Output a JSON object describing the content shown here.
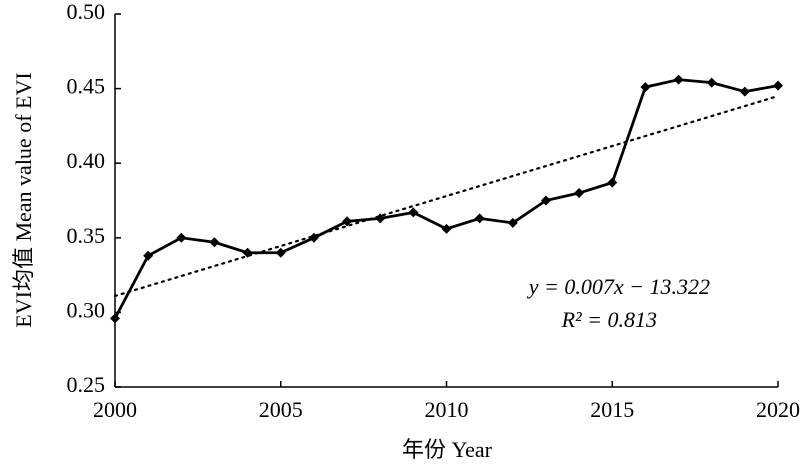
{
  "chart_data": {
    "type": "line",
    "x": [
      2000,
      2001,
      2002,
      2003,
      2004,
      2005,
      2006,
      2007,
      2008,
      2009,
      2010,
      2011,
      2012,
      2013,
      2014,
      2015,
      2016,
      2017,
      2018,
      2019,
      2020
    ],
    "series": [
      {
        "color": "#000000",
        "marker": "diamond",
        "values": [
          0.296,
          0.338,
          0.35,
          0.347,
          0.34,
          0.34,
          0.35,
          0.361,
          0.363,
          0.367,
          0.356,
          0.363,
          0.36,
          0.375,
          0.38,
          0.387,
          0.451,
          0.456,
          0.454,
          0.448,
          0.452
        ]
      }
    ],
    "trendline": {
      "x": [
        2000,
        2020
      ],
      "values": [
        0.311,
        0.445
      ],
      "color": "#000000",
      "style": "dotted"
    },
    "annotations": [
      "y = 0.007x − 13.322",
      "R² = 0.813"
    ],
    "xlabel": "年份 Year",
    "ylabel": "EVI均值 Mean value of EVI",
    "xlim": [
      2000,
      2020
    ],
    "xticks": [
      2000,
      2005,
      2010,
      2015,
      2020
    ],
    "ylim": [
      0.25,
      0.5
    ],
    "yticks": [
      0.25,
      {
        "value": 0.3,
        "label": "0.30"
      },
      0.35,
      {
        "value": 0.4,
        "label": "0.40"
      },
      0.45,
      {
        "value": 0.5,
        "label": "0.50"
      }
    ],
    "grid": false
  }
}
